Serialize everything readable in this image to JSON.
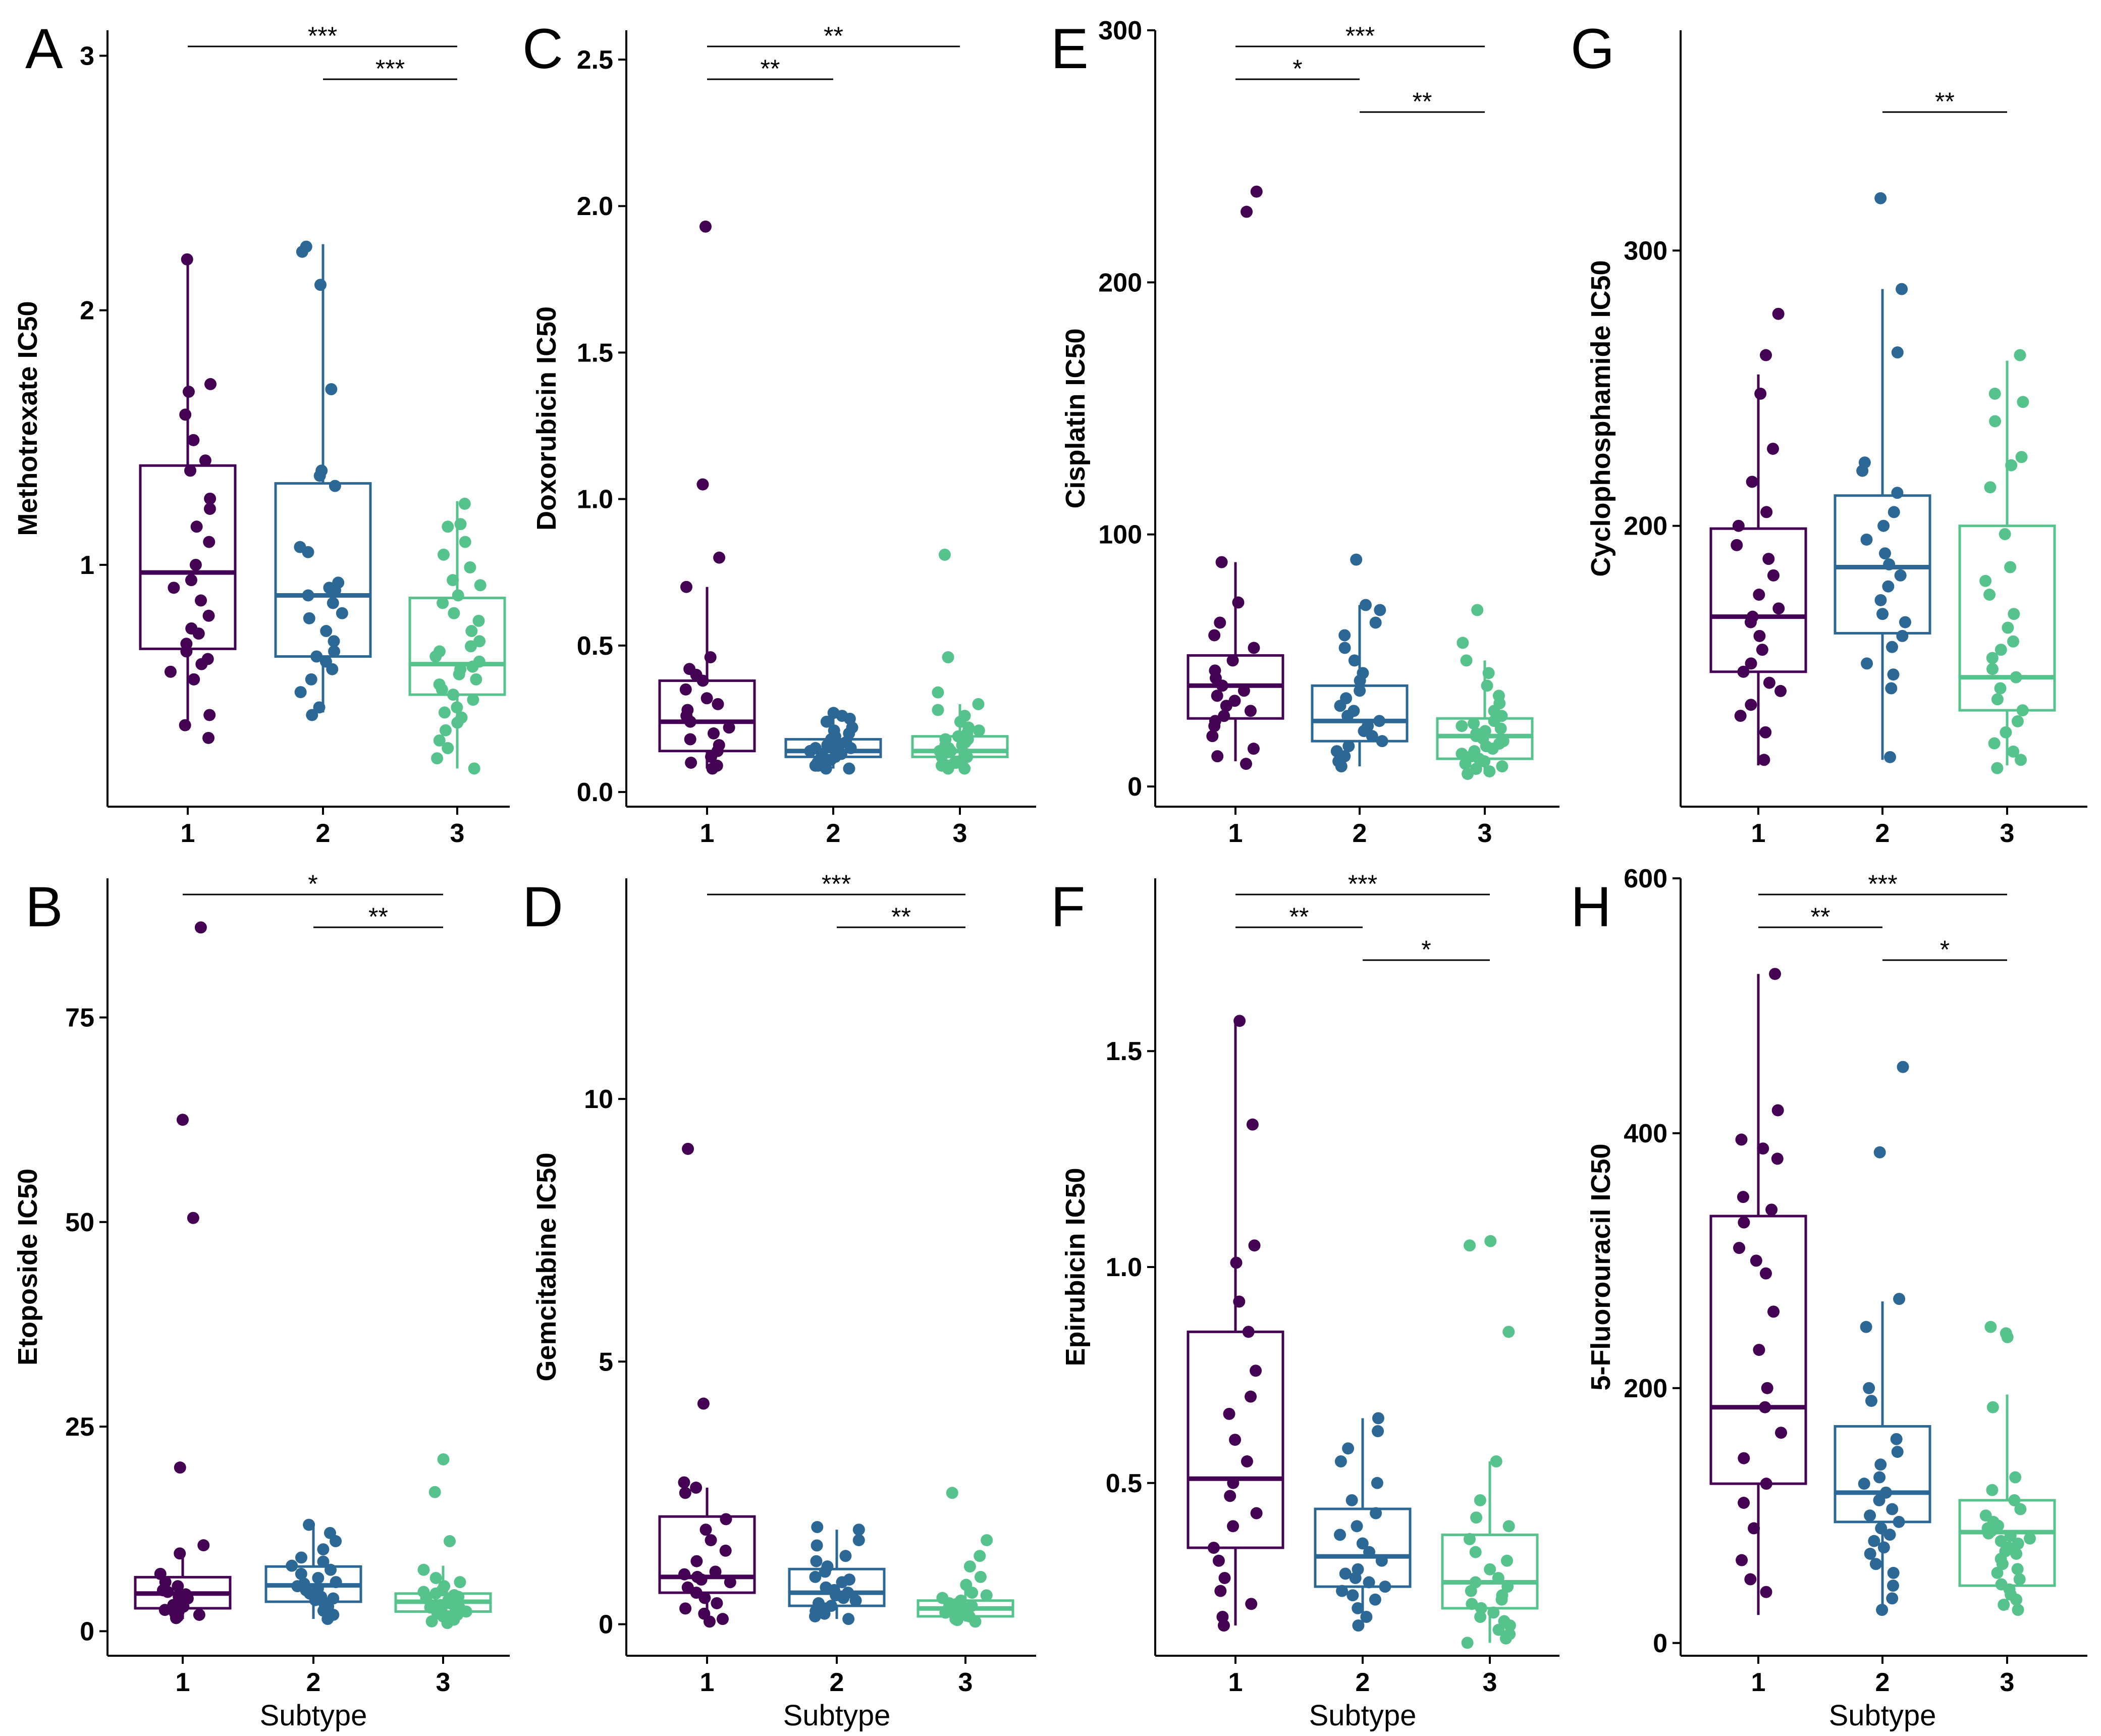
{
  "colors": {
    "1": "#440154",
    "2": "#2c6895",
    "3": "#57c38c",
    "axis": "#000000"
  },
  "xlabel": "Subtype",
  "chart_data": [
    {
      "id": "A",
      "type": "boxplot",
      "ylabel": "Methotrexate IC50",
      "ylim": [
        0.05,
        3.1
      ],
      "yticks": [
        1,
        2,
        3
      ],
      "categories": [
        "1",
        "2",
        "3"
      ],
      "show_xlabel": false,
      "boxes": [
        {
          "min": 0.35,
          "q1": 0.67,
          "median": 0.97,
          "q3": 1.39,
          "max": 2.21
        },
        {
          "min": 0.42,
          "q1": 0.64,
          "median": 0.88,
          "q3": 1.32,
          "max": 2.26
        },
        {
          "min": 0.2,
          "q1": 0.49,
          "median": 0.61,
          "q3": 0.87,
          "max": 1.25
        }
      ],
      "points": [
        [
          2.2,
          1.71,
          1.68,
          1.59,
          1.49,
          1.41,
          1.37,
          1.26,
          1.22,
          1.15,
          1.09,
          1.0,
          0.94,
          0.91,
          0.86,
          0.8,
          0.75,
          0.73,
          0.69,
          0.66,
          0.63,
          0.61,
          0.58,
          0.55,
          0.41,
          0.37,
          0.32
        ],
        [
          2.25,
          2.23,
          2.1,
          1.69,
          1.37,
          1.35,
          1.31,
          1.07,
          1.05,
          0.93,
          0.91,
          0.9,
          0.88,
          0.85,
          0.81,
          0.79,
          0.74,
          0.7,
          0.66,
          0.64,
          0.62,
          0.59,
          0.55,
          0.5,
          0.44,
          0.41
        ],
        [
          1.24,
          1.16,
          1.15,
          1.09,
          1.04,
          0.99,
          0.94,
          0.92,
          0.88,
          0.85,
          0.81,
          0.78,
          0.74,
          0.7,
          0.68,
          0.66,
          0.64,
          0.62,
          0.6,
          0.59,
          0.57,
          0.55,
          0.53,
          0.51,
          0.49,
          0.47,
          0.44,
          0.42,
          0.4,
          0.38,
          0.35,
          0.31,
          0.28,
          0.24,
          0.2
        ]
      ],
      "brackets": [
        {
          "from": 1,
          "to": 3,
          "level": 0,
          "label": "***"
        },
        {
          "from": 2,
          "to": 3,
          "level": 1,
          "label": "***"
        }
      ]
    },
    {
      "id": "B",
      "type": "boxplot",
      "ylabel": "Etoposide IC50",
      "ylim": [
        -3,
        92
      ],
      "yticks": [
        0,
        25,
        50,
        75
      ],
      "categories": [
        "1",
        "2",
        "3"
      ],
      "show_xlabel": true,
      "boxes": [
        {
          "min": 1.5,
          "q1": 2.8,
          "median": 4.6,
          "q3": 6.6,
          "max": 10
        },
        {
          "min": 1.5,
          "q1": 3.6,
          "median": 5.6,
          "q3": 7.9,
          "max": 13
        },
        {
          "min": 1.0,
          "q1": 2.4,
          "median": 3.6,
          "q3": 4.6,
          "max": 8
        }
      ],
      "points": [
        [
          86,
          62.5,
          50.5,
          20,
          10.5,
          9.5,
          7,
          6,
          5.5,
          5,
          4.8,
          4.5,
          4.2,
          4,
          3.8,
          3.5,
          3.2,
          3,
          2.8,
          2.6,
          2.4,
          2.2,
          2,
          1.8,
          1.6
        ],
        [
          13,
          12,
          11,
          10,
          9,
          8.5,
          8,
          7.5,
          7,
          6.5,
          6,
          5.8,
          5.5,
          5.2,
          5,
          4.6,
          4.2,
          4,
          3.8,
          3.5,
          3,
          2.5,
          2,
          1.5
        ],
        [
          21,
          17,
          11,
          7.5,
          6.5,
          6,
          5.5,
          5,
          4.8,
          4.6,
          4.4,
          4.2,
          4,
          3.8,
          3.6,
          3.4,
          3.2,
          3,
          2.9,
          2.8,
          2.6,
          2.5,
          2.4,
          2.2,
          2,
          1.8,
          1.6,
          1.4,
          1.2,
          1
        ]
      ],
      "brackets": [
        {
          "from": 1,
          "to": 3,
          "level": 0,
          "label": "*"
        },
        {
          "from": 2,
          "to": 3,
          "level": 1,
          "label": "**"
        }
      ]
    },
    {
      "id": "C",
      "type": "boxplot",
      "ylabel": "Doxorubicin IC50",
      "ylim": [
        -0.05,
        2.6
      ],
      "yticks": [
        0.0,
        0.5,
        1.0,
        1.5,
        2.0,
        2.5
      ],
      "tick_decimals": 1,
      "categories": [
        "1",
        "2",
        "3"
      ],
      "show_xlabel": false,
      "boxes": [
        {
          "min": 0.08,
          "q1": 0.14,
          "median": 0.24,
          "q3": 0.38,
          "max": 0.7
        },
        {
          "min": 0.08,
          "q1": 0.12,
          "median": 0.14,
          "q3": 0.18,
          "max": 0.27
        },
        {
          "min": 0.08,
          "q1": 0.12,
          "median": 0.14,
          "q3": 0.19,
          "max": 0.3
        }
      ],
      "points": [
        [
          1.93,
          1.05,
          0.8,
          0.7,
          0.46,
          0.42,
          0.4,
          0.38,
          0.35,
          0.32,
          0.3,
          0.28,
          0.26,
          0.24,
          0.22,
          0.2,
          0.18,
          0.16,
          0.14,
          0.12,
          0.1,
          0.09,
          0.08
        ],
        [
          0.27,
          0.26,
          0.25,
          0.24,
          0.22,
          0.21,
          0.2,
          0.19,
          0.18,
          0.17,
          0.16,
          0.16,
          0.15,
          0.15,
          0.14,
          0.14,
          0.13,
          0.13,
          0.12,
          0.12,
          0.11,
          0.11,
          0.1,
          0.1,
          0.09,
          0.09,
          0.08,
          0.08
        ],
        [
          0.81,
          0.46,
          0.34,
          0.3,
          0.28,
          0.26,
          0.24,
          0.22,
          0.21,
          0.2,
          0.19,
          0.18,
          0.18,
          0.17,
          0.16,
          0.16,
          0.15,
          0.15,
          0.14,
          0.14,
          0.13,
          0.13,
          0.12,
          0.12,
          0.11,
          0.11,
          0.1,
          0.1,
          0.09,
          0.09,
          0.08,
          0.08
        ]
      ],
      "brackets": [
        {
          "from": 1,
          "to": 3,
          "level": 0,
          "label": "**"
        },
        {
          "from": 1,
          "to": 2,
          "level": 1,
          "label": "**"
        }
      ]
    },
    {
      "id": "D",
      "type": "boxplot",
      "ylabel": "Gemcitabine IC50",
      "ylim": [
        -0.6,
        14.2
      ],
      "yticks": [
        0,
        5,
        10
      ],
      "categories": [
        "1",
        "2",
        "3"
      ],
      "show_xlabel": true,
      "boxes": [
        {
          "min": 0.05,
          "q1": 0.6,
          "median": 0.9,
          "q3": 2.05,
          "max": 2.6
        },
        {
          "min": 0.1,
          "q1": 0.35,
          "median": 0.6,
          "q3": 1.05,
          "max": 1.8
        },
        {
          "min": 0.05,
          "q1": 0.15,
          "median": 0.3,
          "q3": 0.45,
          "max": 0.75
        }
      ],
      "points": [
        [
          9.05,
          4.2,
          2.7,
          2.6,
          2.5,
          2.0,
          1.8,
          1.6,
          1.4,
          1.2,
          1.0,
          0.95,
          0.9,
          0.85,
          0.8,
          0.7,
          0.6,
          0.5,
          0.4,
          0.3,
          0.2,
          0.1,
          0.05
        ],
        [
          1.85,
          1.8,
          1.6,
          1.5,
          1.3,
          1.2,
          1.1,
          1.0,
          0.9,
          0.85,
          0.8,
          0.7,
          0.65,
          0.6,
          0.55,
          0.5,
          0.45,
          0.4,
          0.35,
          0.3,
          0.25,
          0.2,
          0.15,
          0.1
        ],
        [
          2.5,
          1.6,
          1.3,
          1.1,
          0.9,
          0.75,
          0.6,
          0.55,
          0.5,
          0.45,
          0.4,
          0.38,
          0.35,
          0.32,
          0.3,
          0.28,
          0.25,
          0.22,
          0.2,
          0.18,
          0.15,
          0.12,
          0.1,
          0.08,
          0.05
        ]
      ],
      "brackets": [
        {
          "from": 1,
          "to": 3,
          "level": 0,
          "label": "***"
        },
        {
          "from": 2,
          "to": 3,
          "level": 1,
          "label": "**"
        }
      ]
    },
    {
      "id": "E",
      "type": "boxplot",
      "ylabel": "Cisplatin IC50",
      "ylim": [
        -8,
        300
      ],
      "yticks": [
        0,
        100,
        200,
        300
      ],
      "categories": [
        "1",
        "2",
        "3"
      ],
      "show_xlabel": false,
      "boxes": [
        {
          "min": 10,
          "q1": 27,
          "median": 40,
          "q3": 52,
          "max": 89
        },
        {
          "min": 8,
          "q1": 18,
          "median": 26,
          "q3": 40,
          "max": 72
        },
        {
          "min": 5,
          "q1": 11,
          "median": 20,
          "q3": 27,
          "max": 50
        }
      ],
      "points": [
        [
          236,
          228,
          89,
          73,
          65,
          60,
          55,
          50,
          46,
          43,
          40,
          38,
          36,
          34,
          32,
          30,
          28,
          26,
          24,
          20,
          15,
          12,
          9
        ],
        [
          90,
          72,
          70,
          65,
          60,
          55,
          50,
          45,
          42,
          38,
          35,
          32,
          30,
          28,
          26,
          24,
          22,
          20,
          18,
          16,
          14,
          12,
          10,
          8
        ],
        [
          70,
          57,
          50,
          45,
          40,
          36,
          33,
          30,
          28,
          26,
          25,
          24,
          23,
          22,
          21,
          20,
          19,
          18,
          17,
          16,
          15,
          14,
          13,
          12,
          11,
          10,
          9,
          8,
          7,
          6,
          5
        ]
      ],
      "brackets": [
        {
          "from": 1,
          "to": 3,
          "level": 0,
          "label": "***"
        },
        {
          "from": 1,
          "to": 2,
          "level": 1,
          "label": "*"
        },
        {
          "from": 2,
          "to": 3,
          "level": 2,
          "label": "**"
        }
      ]
    },
    {
      "id": "F",
      "type": "boxplot",
      "ylabel": "Epirubicin IC50",
      "ylim": [
        0.1,
        1.9
      ],
      "yticks": [
        0.5,
        1.0,
        1.5
      ],
      "tick_decimals": 1,
      "categories": [
        "1",
        "2",
        "3"
      ],
      "show_xlabel": true,
      "boxes": [
        {
          "min": 0.17,
          "q1": 0.35,
          "median": 0.51,
          "q3": 0.85,
          "max": 1.57
        },
        {
          "min": 0.17,
          "q1": 0.26,
          "median": 0.33,
          "q3": 0.44,
          "max": 0.65
        },
        {
          "min": 0.13,
          "q1": 0.21,
          "median": 0.27,
          "q3": 0.38,
          "max": 0.55
        }
      ],
      "points": [
        [
          1.57,
          1.33,
          1.05,
          1.01,
          0.92,
          0.85,
          0.76,
          0.7,
          0.66,
          0.6,
          0.55,
          0.5,
          0.47,
          0.43,
          0.4,
          0.35,
          0.32,
          0.28,
          0.25,
          0.22,
          0.19,
          0.17
        ],
        [
          0.65,
          0.62,
          0.58,
          0.55,
          0.5,
          0.46,
          0.43,
          0.4,
          0.38,
          0.36,
          0.34,
          0.32,
          0.3,
          0.29,
          0.28,
          0.27,
          0.26,
          0.25,
          0.24,
          0.23,
          0.21,
          0.19,
          0.17
        ],
        [
          1.06,
          1.05,
          0.85,
          0.55,
          0.46,
          0.42,
          0.4,
          0.37,
          0.34,
          0.32,
          0.3,
          0.28,
          0.27,
          0.26,
          0.25,
          0.24,
          0.23,
          0.22,
          0.21,
          0.2,
          0.19,
          0.18,
          0.17,
          0.16,
          0.15,
          0.14,
          0.13
        ]
      ],
      "brackets": [
        {
          "from": 1,
          "to": 3,
          "level": 0,
          "label": "***"
        },
        {
          "from": 1,
          "to": 2,
          "level": 1,
          "label": "**"
        },
        {
          "from": 2,
          "to": 3,
          "level": 2,
          "label": "*"
        }
      ]
    },
    {
      "id": "G",
      "type": "boxplot",
      "ylabel": "Cyclophosphamide IC50",
      "ylim": [
        98,
        380
      ],
      "yticks": [
        200,
        300
      ],
      "categories": [
        "1",
        "2",
        "3"
      ],
      "show_xlabel": false,
      "boxes": [
        {
          "min": 113,
          "q1": 147,
          "median": 167,
          "q3": 199,
          "max": 255
        },
        {
          "min": 115,
          "q1": 161,
          "median": 185,
          "q3": 211,
          "max": 286
        },
        {
          "min": 113,
          "q1": 133,
          "median": 145,
          "q3": 200,
          "max": 260
        }
      ],
      "points": [
        [
          277,
          262,
          248,
          228,
          216,
          205,
          200,
          193,
          188,
          182,
          175,
          170,
          167,
          165,
          160,
          155,
          150,
          147,
          143,
          140,
          135,
          131,
          125,
          115
        ],
        [
          319,
          286,
          263,
          223,
          220,
          212,
          205,
          200,
          195,
          190,
          186,
          182,
          178,
          173,
          168,
          165,
          160,
          156,
          150,
          146,
          141,
          116
        ],
        [
          262,
          248,
          245,
          238,
          225,
          222,
          214,
          197,
          185,
          180,
          175,
          168,
          163,
          158,
          155,
          152,
          148,
          145,
          141,
          137,
          133,
          129,
          125,
          121,
          118,
          115,
          112
        ]
      ],
      "brackets": [
        {
          "from": 2,
          "to": 3,
          "level": 2,
          "label": "**"
        }
      ]
    },
    {
      "id": "H",
      "type": "boxplot",
      "ylabel": "5-Fluorouracil IC50",
      "ylim": [
        -10,
        600
      ],
      "yticks": [
        0,
        200,
        400,
        600
      ],
      "categories": [
        "1",
        "2",
        "3"
      ],
      "show_xlabel": true,
      "boxes": [
        {
          "min": 22,
          "q1": 125,
          "median": 185,
          "q3": 335,
          "max": 525
        },
        {
          "min": 26,
          "q1": 95,
          "median": 118,
          "q3": 170,
          "max": 268
        },
        {
          "min": 26,
          "q1": 45,
          "median": 87,
          "q3": 112,
          "max": 195
        }
      ],
      "points": [
        [
          525,
          418,
          395,
          388,
          380,
          350,
          340,
          330,
          310,
          300,
          290,
          260,
          230,
          200,
          185,
          165,
          145,
          125,
          110,
          90,
          65,
          50,
          40
        ],
        [
          452,
          385,
          270,
          248,
          200,
          190,
          160,
          150,
          140,
          130,
          125,
          118,
          112,
          105,
          100,
          95,
          90,
          85,
          80,
          75,
          70,
          62,
          55,
          45,
          35,
          26
        ],
        [
          248,
          243,
          240,
          185,
          130,
          120,
          112,
          105,
          100,
          95,
          92,
          90,
          88,
          86,
          84,
          82,
          80,
          78,
          75,
          72,
          70,
          66,
          62,
          58,
          55,
          50,
          46,
          42,
          38,
          34,
          30,
          26
        ]
      ],
      "brackets": [
        {
          "from": 1,
          "to": 3,
          "level": 0,
          "label": "***"
        },
        {
          "from": 1,
          "to": 2,
          "level": 1,
          "label": "**"
        },
        {
          "from": 2,
          "to": 3,
          "level": 2,
          "label": "*"
        }
      ]
    }
  ]
}
